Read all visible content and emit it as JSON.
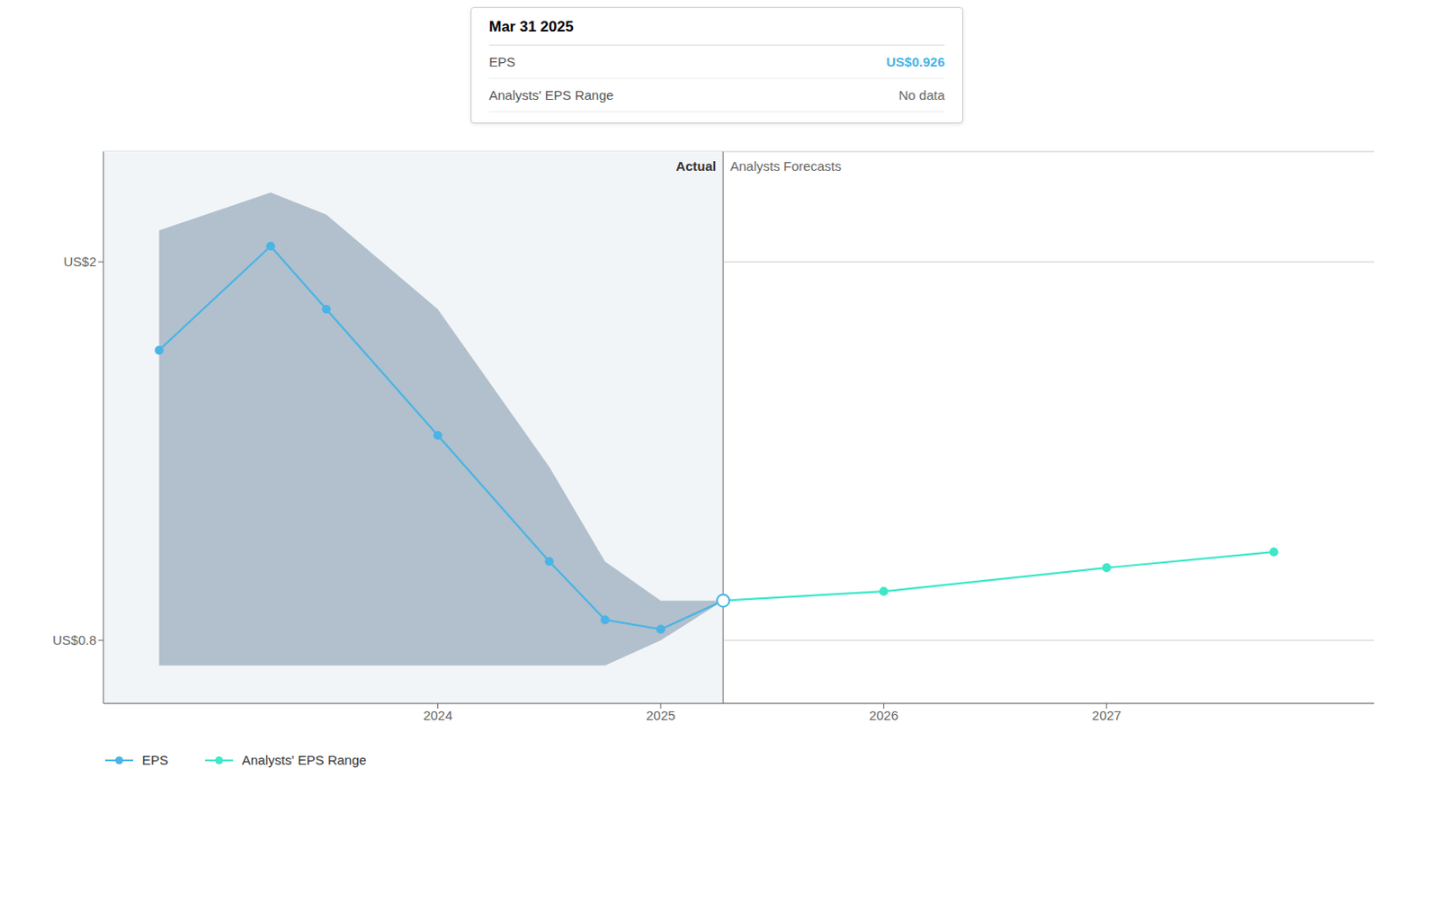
{
  "chart_data": {
    "type": "line",
    "xlim": [
      2022.5,
      2028.2
    ],
    "xticks": [
      2024,
      2025,
      2026,
      2027
    ],
    "ylim": [
      0.6,
      2.35
    ],
    "yticks": [
      {
        "value": 0.8,
        "label": "US$0.8"
      },
      {
        "value": 2.0,
        "label": "US$2"
      }
    ],
    "grid": true,
    "series": [
      {
        "name": "EPS",
        "color": "#4ab4e6",
        "marker": "circle",
        "x": [
          2022.75,
          2023.25,
          2023.5,
          2024.0,
          2024.5,
          2024.75,
          2025.0,
          2025.28
        ],
        "values": [
          1.72,
          2.05,
          1.85,
          1.45,
          1.05,
          0.865,
          0.835,
          0.926
        ]
      },
      {
        "name": "Analysts' EPS Range",
        "color": "#3de8c8",
        "marker": "circle",
        "x": [
          2025.28,
          2026.0,
          2027.0,
          2027.75
        ],
        "values": [
          0.926,
          0.955,
          1.03,
          1.08
        ]
      }
    ],
    "band": {
      "color": "#1c4468",
      "x": [
        2022.75,
        2023.25,
        2023.5,
        2024.0,
        2024.5,
        2024.75,
        2025.0,
        2025.28
      ],
      "lower": [
        0.72,
        0.72,
        0.72,
        0.72,
        0.72,
        0.72,
        0.8,
        0.926
      ],
      "upper": [
        2.1,
        2.22,
        2.15,
        1.85,
        1.35,
        1.05,
        0.926,
        0.926
      ]
    },
    "divider": {
      "x": 2025.28,
      "left_label": "Actual",
      "right_label": "Analysts Forecasts"
    },
    "highlight": {
      "x": 2025.28,
      "y": 0.926
    },
    "tooltip": {
      "title": "Mar 31 2025",
      "rows": [
        {
          "label": "EPS",
          "value": "US$0.926",
          "color": "#4ab4e6"
        },
        {
          "label": "Analysts' EPS Range",
          "value": "No data",
          "color": "#666666"
        }
      ]
    }
  }
}
